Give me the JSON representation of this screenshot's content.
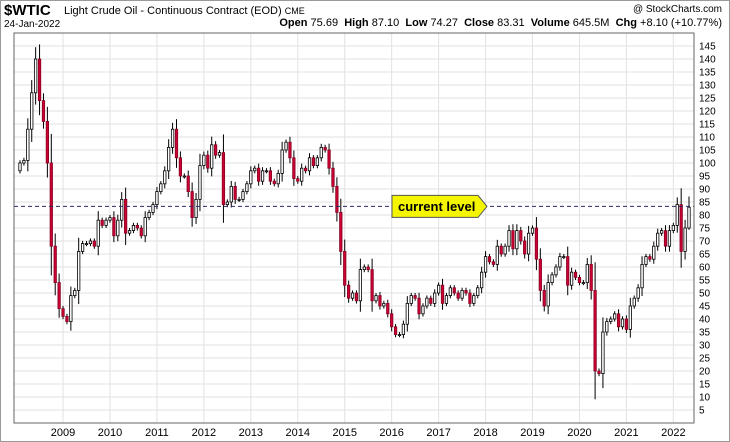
{
  "header": {
    "symbol": "$WTIC",
    "description": "Light Crude Oil - Continuous Contract (EOD)",
    "exchange": "CME",
    "date": "24-Jan-2022",
    "watermark": "@ StockCharts.com",
    "open_label": "Open",
    "open": "75.69",
    "high_label": "High",
    "high": "87.10",
    "low_label": "Low",
    "low": "74.27",
    "close_label": "Close",
    "close": "83.31",
    "volume_label": "Volume",
    "volume": "645.5M",
    "chg_label": "Chg",
    "chg": "+8.10 (+10.77%)"
  },
  "chart_data": {
    "type": "candlestick",
    "title": "$WTIC Light Crude Oil - Continuous Contract (EOD)",
    "period": "monthly",
    "ylim": [
      0,
      150
    ],
    "y_ticks": [
      5,
      10,
      15,
      20,
      25,
      30,
      35,
      40,
      45,
      50,
      55,
      60,
      65,
      70,
      75,
      80,
      85,
      90,
      95,
      100,
      105,
      110,
      115,
      120,
      125,
      130,
      135,
      140,
      145
    ],
    "x_start": "2008-02",
    "x_ticks": [
      {
        "label": "2009",
        "month": "2009-01"
      },
      {
        "label": "2010",
        "month": "2010-01"
      },
      {
        "label": "2011",
        "month": "2011-01"
      },
      {
        "label": "2012",
        "month": "2012-01"
      },
      {
        "label": "2013",
        "month": "2013-01"
      },
      {
        "label": "2014",
        "month": "2014-01"
      },
      {
        "label": "2015",
        "month": "2015-01"
      },
      {
        "label": "2016",
        "month": "2016-01"
      },
      {
        "label": "2017",
        "month": "2017-01"
      },
      {
        "label": "2018",
        "month": "2018-01"
      },
      {
        "label": "2019",
        "month": "2019-01"
      },
      {
        "label": "2020",
        "month": "2020-01"
      },
      {
        "label": "2021",
        "month": "2021-01"
      },
      {
        "label": "2022",
        "month": "2022-01"
      }
    ],
    "current_level": 83.31,
    "annotation": "current level",
    "monthly_close": [
      100,
      101,
      113,
      127,
      140,
      124,
      116,
      100,
      68,
      54,
      44,
      41,
      39,
      49,
      51,
      66,
      69,
      69,
      70,
      68,
      78,
      76,
      78,
      79,
      72,
      78,
      86,
      73,
      74,
      76,
      75,
      72,
      79,
      81,
      84,
      89,
      92,
      97,
      106,
      113,
      102,
      95,
      95,
      89,
      79,
      86,
      99,
      103,
      98,
      107,
      103,
      104,
      84,
      85,
      91,
      86,
      86,
      89,
      92,
      97,
      98,
      93,
      97,
      97,
      93,
      92,
      96,
      105,
      108,
      102,
      94,
      93,
      98,
      97,
      102,
      99,
      102,
      106,
      105,
      98,
      91,
      81,
      66,
      53,
      48,
      50,
      47,
      59,
      60,
      59,
      47,
      49,
      45,
      46,
      42,
      37,
      34,
      34,
      38,
      46,
      49,
      48,
      42,
      45,
      48,
      46,
      50,
      53,
      46,
      49,
      52,
      50,
      48,
      51,
      50,
      46,
      49,
      52,
      58,
      64,
      62,
      61,
      68,
      65,
      68,
      74,
      67,
      74,
      70,
      65,
      73,
      75,
      63,
      51,
      45,
      54,
      57,
      60,
      64,
      64,
      53,
      58,
      56,
      54,
      54,
      61,
      51,
      20,
      19,
      35,
      39,
      40,
      42,
      37,
      40,
      36,
      45,
      48,
      52,
      61,
      64,
      63,
      68,
      73,
      74,
      68,
      74,
      76,
      84,
      66,
      75,
      83
    ],
    "annotation_pos": "right, pointing at the current-level line"
  }
}
